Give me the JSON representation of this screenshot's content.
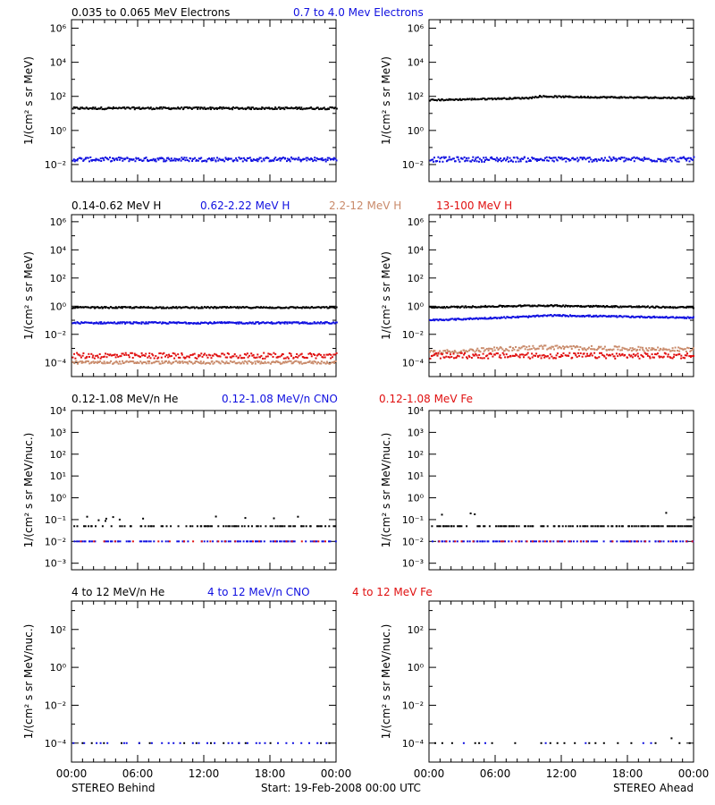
{
  "colors": {
    "black": "#000000",
    "blue": "#1010e0",
    "red": "#e01010",
    "tan": "#c98a6a",
    "magenta": "#b000b0"
  },
  "footer": {
    "left_label": "STEREO Behind",
    "center_label": "Start: 19-Feb-2008 00:00 UTC",
    "right_label": "STEREO Ahead"
  },
  "chart_data": [
    {
      "row": "electrons",
      "panel": "STEREO Behind",
      "type": "scatter",
      "ylabel": "1/(cm² s sr MeV)",
      "yscale": "log",
      "ylim_exp": [
        -3,
        6.5
      ],
      "ytick_exps": [
        -2,
        0,
        2,
        4,
        6
      ],
      "xlim": [
        "00:00",
        "24:00"
      ],
      "xticks": [
        "00:00",
        "06:00",
        "12:00",
        "18:00",
        "00:00"
      ],
      "legend_labels": [
        {
          "text": "0.035 to 0.065 MeV Electrons",
          "color": "black"
        },
        {
          "text": "0.7 to 4.0 Mev Electrons",
          "color": "blue"
        }
      ],
      "series": [
        {
          "name": "0.035 to 0.065 MeV Electrons",
          "color": "black",
          "level": [
            [
              0,
              20
            ],
            [
              24,
              20
            ]
          ],
          "scatter": 0.06,
          "density": 260
        },
        {
          "name": "0.7 to 4.0 Mev Electrons",
          "color": "blue",
          "level": [
            [
              0,
              0.02
            ],
            [
              24,
              0.02
            ]
          ],
          "scatter": 0.12,
          "density": 260
        }
      ]
    },
    {
      "row": "electrons",
      "panel": "STEREO Ahead",
      "type": "scatter",
      "ylabel": "1/(cm² s sr MeV)",
      "yscale": "log",
      "ylim_exp": [
        -3,
        6.5
      ],
      "ytick_exps": [
        -2,
        0,
        2,
        4,
        6
      ],
      "xlim": [
        "00:00",
        "24:00"
      ],
      "xticks": [
        "00:00",
        "06:00",
        "12:00",
        "18:00",
        "00:00"
      ],
      "legend_labels": [],
      "series": [
        {
          "name": "0.035 to 0.065 MeV Electrons",
          "color": "black",
          "level": [
            [
              0,
              60
            ],
            [
              9,
              80
            ],
            [
              10,
              100
            ],
            [
              14,
              90
            ],
            [
              24,
              80
            ]
          ],
          "scatter": 0.04,
          "density": 260
        },
        {
          "name": "0.7 to 4.0 Mev Electrons",
          "color": "blue",
          "level": [
            [
              0,
              0.02
            ],
            [
              24,
              0.02
            ]
          ],
          "scatter": 0.14,
          "density": 260
        }
      ]
    },
    {
      "row": "protons",
      "panel": "STEREO Behind",
      "type": "scatter",
      "ylabel": "1/(cm² s sr MeV)",
      "yscale": "log",
      "ylim_exp": [
        -5,
        6.5
      ],
      "ytick_exps": [
        -4,
        -2,
        0,
        2,
        4,
        6
      ],
      "xlim": [
        "00:00",
        "24:00"
      ],
      "xticks": [
        "00:00",
        "06:00",
        "12:00",
        "18:00",
        "00:00"
      ],
      "legend_labels": [
        {
          "text": "0.14-0.62 MeV H",
          "color": "black"
        },
        {
          "text": "0.62-2.22 MeV H",
          "color": "blue"
        },
        {
          "text": "2.2-12 MeV H",
          "color": "tan"
        },
        {
          "text": "13-100 MeV H",
          "color": "red"
        }
      ],
      "series": [
        {
          "name": "0.14-0.62 MeV H",
          "color": "black",
          "level": [
            [
              0,
              0.8
            ],
            [
              24,
              0.8
            ]
          ],
          "scatter": 0.05,
          "density": 260
        },
        {
          "name": "0.62-2.22 MeV H",
          "color": "blue",
          "level": [
            [
              0,
              0.065
            ],
            [
              24,
              0.065
            ]
          ],
          "scatter": 0.06,
          "density": 260
        },
        {
          "name": "2.2-12 MeV H",
          "color": "tan",
          "level": [
            [
              0,
              0.0001
            ],
            [
              24,
              0.0001
            ]
          ],
          "scatter": 0.1,
          "density": 220
        },
        {
          "name": "13-100 MeV H",
          "color": "red",
          "level": [
            [
              0,
              0.0003
            ],
            [
              24,
              0.0003
            ]
          ],
          "scatter": 0.2,
          "density": 220
        }
      ]
    },
    {
      "row": "protons",
      "panel": "STEREO Ahead",
      "type": "scatter",
      "ylabel": "1/(cm² s sr MeV)",
      "yscale": "log",
      "ylim_exp": [
        -5,
        6.5
      ],
      "ytick_exps": [
        -4,
        -2,
        0,
        2,
        4,
        6
      ],
      "xlim": [
        "00:00",
        "24:00"
      ],
      "xticks": [
        "00:00",
        "06:00",
        "12:00",
        "18:00",
        "00:00"
      ],
      "legend_labels": [],
      "series": [
        {
          "name": "0.14-0.62 MeV H",
          "color": "black",
          "level": [
            [
              0,
              0.8
            ],
            [
              10,
              1.1
            ],
            [
              14,
              1.0
            ],
            [
              24,
              0.8
            ]
          ],
          "scatter": 0.05,
          "density": 260
        },
        {
          "name": "0.62-2.22 MeV H",
          "color": "blue",
          "level": [
            [
              0,
              0.1
            ],
            [
              9,
              0.18
            ],
            [
              11,
              0.22
            ],
            [
              24,
              0.15
            ]
          ],
          "scatter": 0.05,
          "density": 260
        },
        {
          "name": "2.2-12 MeV H",
          "color": "tan",
          "level": [
            [
              0,
              0.0005
            ],
            [
              10,
              0.0012
            ],
            [
              24,
              0.0008
            ]
          ],
          "scatter": 0.15,
          "density": 220
        },
        {
          "name": "13-100 MeV H",
          "color": "red",
          "level": [
            [
              0,
              0.0003
            ],
            [
              24,
              0.0003
            ]
          ],
          "scatter": 0.2,
          "density": 220
        }
      ]
    },
    {
      "row": "heavy_low",
      "panel": "STEREO Behind",
      "type": "scatter",
      "ylabel": "1/(cm² s sr MeV/nuc.)",
      "yscale": "log",
      "ylim_exp": [
        -3.3,
        4
      ],
      "ytick_exps": [
        -3,
        -2,
        -1,
        0,
        1,
        2,
        3,
        4
      ],
      "xlim": [
        "00:00",
        "24:00"
      ],
      "xticks": [
        "00:00",
        "06:00",
        "12:00",
        "18:00",
        "00:00"
      ],
      "legend_labels": [
        {
          "text": "0.12-1.08 MeV/n He",
          "color": "black"
        },
        {
          "text": "0.12-1.08 MeV/n CNO",
          "color": "blue"
        },
        {
          "text": "0.12-1.08 MeV Fe",
          "color": "red"
        }
      ],
      "series": [
        {
          "name": "0.12-1.08 MeV/n He",
          "color": "black",
          "level": [
            [
              0,
              0.05
            ],
            [
              24,
              0.05
            ]
          ],
          "scatter": 0.0,
          "density": 150,
          "upper": 0.1
        },
        {
          "name": "0.12-1.08 MeV/n CNO",
          "color": "blue",
          "level": [
            [
              0,
              0.01
            ],
            [
              24,
              0.01
            ]
          ],
          "scatter": 0.0,
          "density": 150
        },
        {
          "name": "0.12-1.08 MeV Fe",
          "color": "red",
          "level": [
            [
              0,
              0.01
            ],
            [
              24,
              0.01
            ]
          ],
          "scatter": 0.0,
          "density": 40
        }
      ]
    },
    {
      "row": "heavy_low",
      "panel": "STEREO Ahead",
      "type": "scatter",
      "ylabel": "1/(cm² s sr MeV/nuc.)",
      "yscale": "log",
      "ylim_exp": [
        -3.3,
        4
      ],
      "ytick_exps": [
        -3,
        -2,
        -1,
        0,
        1,
        2,
        3,
        4
      ],
      "xlim": [
        "00:00",
        "24:00"
      ],
      "xticks": [
        "00:00",
        "06:00",
        "12:00",
        "18:00",
        "00:00"
      ],
      "legend_labels": [],
      "series": [
        {
          "name": "0.12-1.08 MeV/n He",
          "color": "black",
          "level": [
            [
              0,
              0.05
            ],
            [
              24,
              0.05
            ]
          ],
          "scatter": 0.0,
          "density": 170,
          "upper": 0.15
        },
        {
          "name": "0.12-1.08 MeV/n CNO",
          "color": "blue",
          "level": [
            [
              0,
              0.01
            ],
            [
              24,
              0.01
            ]
          ],
          "scatter": 0.0,
          "density": 150
        },
        {
          "name": "0.12-1.08 MeV Fe",
          "color": "red",
          "level": [
            [
              0,
              0.01
            ],
            [
              24,
              0.01
            ]
          ],
          "scatter": 0.0,
          "density": 40
        }
      ]
    },
    {
      "row": "heavy_high",
      "panel": "STEREO Behind",
      "type": "scatter",
      "ylabel": "1/(cm² s sr MeV/nuc.)",
      "yscale": "log",
      "ylim_exp": [
        -5,
        3.5
      ],
      "ytick_exps": [
        -4,
        -2,
        0,
        2
      ],
      "xlim": [
        "00:00",
        "24:00"
      ],
      "xticks": [
        "00:00",
        "06:00",
        "12:00",
        "18:00",
        "00:00"
      ],
      "legend_labels": [
        {
          "text": "4 to 12 MeV/n He",
          "color": "black"
        },
        {
          "text": "4 to 12 MeV/n CNO",
          "color": "blue"
        },
        {
          "text": "4 to 12 MeV Fe",
          "color": "red"
        }
      ],
      "series": [
        {
          "name": "4 to 12 MeV/n He",
          "color": "black",
          "level": [
            [
              0,
              0.0001
            ],
            [
              24,
              0.0001
            ]
          ],
          "scatter": 0.0,
          "density": 22,
          "upper": 0.0002
        },
        {
          "name": "4 to 12 MeV/n CNO",
          "color": "blue",
          "level": [
            [
              0,
              0.0001
            ],
            [
              24,
              0.0001
            ]
          ],
          "scatter": 0.0,
          "density": 40
        }
      ]
    },
    {
      "row": "heavy_high",
      "panel": "STEREO Ahead",
      "type": "scatter",
      "ylabel": "1/(cm² s sr MeV/nuc.)",
      "yscale": "log",
      "ylim_exp": [
        -5,
        3.5
      ],
      "ytick_exps": [
        -4,
        -2,
        0,
        2
      ],
      "xlim": [
        "00:00",
        "24:00"
      ],
      "xticks": [
        "00:00",
        "06:00",
        "12:00",
        "18:00",
        "00:00"
      ],
      "legend_labels": [],
      "series": [
        {
          "name": "4 to 12 MeV/n He",
          "color": "black",
          "level": [
            [
              0,
              0.0001
            ],
            [
              24,
              0.0001
            ]
          ],
          "scatter": 0.0,
          "density": 28,
          "upper": 0.0002
        },
        {
          "name": "4 to 12 MeV/n CNO",
          "color": "blue",
          "level": [
            [
              0,
              0.0001
            ],
            [
              24,
              0.0001
            ]
          ],
          "scatter": 0.0,
          "density": 12
        }
      ]
    }
  ]
}
